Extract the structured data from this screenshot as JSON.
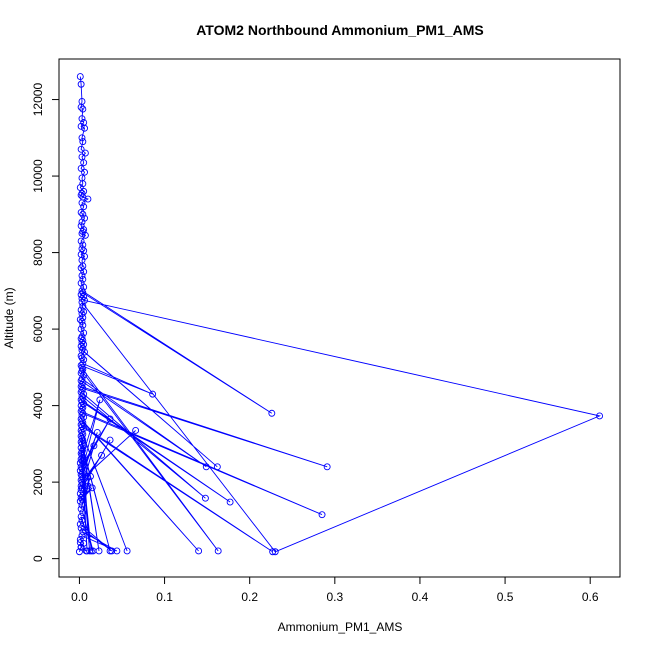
{
  "chart_data": {
    "type": "line",
    "title": "ATOM2 Northbound Ammonium_PM1_AMS",
    "xlabel": "Ammonium_PM1_AMS",
    "ylabel": "Altitude (m)",
    "xlim": [
      -0.024,
      0.635
    ],
    "ylim": [
      -480,
      13060
    ],
    "x_ticks": [
      0.0,
      0.1,
      0.2,
      0.3,
      0.4,
      0.5,
      0.6
    ],
    "x_tick_labels": [
      "0.0",
      "0.1",
      "0.2",
      "0.3",
      "0.4",
      "0.5",
      "0.6"
    ],
    "y_ticks": [
      0,
      2000,
      4000,
      6000,
      8000,
      10000,
      12000
    ],
    "y_tick_labels": [
      "0",
      "2000",
      "4000",
      "6000",
      "8000",
      "10000",
      "12000"
    ],
    "grid": false,
    "legend": "none",
    "series_color": "#0000ff",
    "marker": "open-circle",
    "series": [
      {
        "x": [
          0.001,
          0.002,
          0.003,
          0.002,
          0.004,
          0.003,
          0.005,
          0.002,
          0.006,
          0.003,
          0.004,
          0.002,
          0.007,
          0.003,
          0.005,
          0.002,
          0.006,
          0.003,
          0.004,
          0.001,
          0.005,
          0.003,
          0.002,
          0.004,
          0.01,
          0.003,
          0.005,
          0.002,
          0.004,
          0.006,
          0.003,
          0.002,
          0.005,
          0.004,
          0.003,
          0.007,
          0.002,
          0.004,
          0.003,
          0.005,
          0.002,
          0.006,
          0.003,
          0.004,
          0.002,
          0.005,
          0.003,
          0.004,
          0.002,
          0.005,
          0.003,
          0.226,
          0.004,
          0.002,
          0.005,
          0.003,
          0.006,
          0.611,
          0.23,
          0.003,
          0.004,
          0.002,
          0.005,
          0.003,
          0.004,
          0.001,
          0.003,
          0.004,
          0.002,
          0.005,
          0.003,
          0.002,
          0.004,
          0.003,
          0.005,
          0.002,
          0.004,
          0.003,
          0.162,
          0.006,
          0.002,
          0.003,
          0.005,
          0.004,
          0.086,
          0.002,
          0.003,
          0.004,
          0.163,
          0.003,
          0.002,
          0.005,
          0.003,
          0.149,
          0.002,
          0.004,
          0.003,
          0.002,
          0.291,
          0.004,
          0.003,
          0.002,
          0.005,
          0.148,
          0.003,
          0.004,
          0.002,
          0.177,
          0.003,
          0.005,
          0.002,
          0.004,
          0.003,
          0.002,
          0.285,
          0.004,
          0.003,
          0.005,
          0.002,
          0.14,
          0.003,
          0.004,
          0.002,
          0.227,
          0.003,
          0.005,
          0.002,
          0.056,
          0.003,
          0.004,
          0.002,
          0.023,
          0.003,
          0.004,
          0.002,
          0.036,
          0.003,
          0.005,
          0.002,
          0.012,
          0.004,
          0.003,
          0.002,
          0.009,
          0.003,
          0.004,
          0.002,
          0.014,
          0.003,
          0.001,
          0.024,
          0.005,
          0.002,
          0.036,
          0.003,
          0.001,
          0.004,
          0.002,
          0.021,
          0.003,
          0.004,
          0.066,
          0.002,
          0.003,
          0.026,
          0.004,
          0.002,
          0.003,
          0.036,
          0.002,
          0.017,
          0.001,
          0.004,
          0.002,
          0.015,
          0.003,
          0.001,
          0.013,
          0.003,
          0.002,
          0.01,
          0.004,
          0.016,
          0.002,
          0.003,
          0.001,
          0.038,
          0.002,
          0.004,
          0.044,
          0.003,
          0.001,
          0.005,
          0.002,
          0.008,
          0.001,
          0.002,
          0.0
        ],
        "y": [
          12600,
          12400,
          11950,
          11800,
          11750,
          11500,
          11400,
          11300,
          11250,
          11000,
          10900,
          10700,
          10600,
          10500,
          10350,
          10200,
          10100,
          9950,
          9800,
          9700,
          9600,
          9550,
          9500,
          9450,
          9400,
          9300,
          9200,
          9050,
          9000,
          8900,
          8800,
          8700,
          8600,
          8550,
          8500,
          8450,
          8300,
          8200,
          8100,
          8050,
          7950,
          7900,
          7800,
          7650,
          7600,
          7500,
          7400,
          7300,
          7200,
          7100,
          7000,
          3800,
          6950,
          6900,
          6850,
          6800,
          6750,
          3730,
          180,
          6700,
          6600,
          6500,
          6450,
          6400,
          6300,
          6250,
          6200,
          6100,
          6000,
          5900,
          5800,
          5750,
          5700,
          5650,
          5600,
          5550,
          5500,
          5450,
          2400,
          5400,
          5300,
          5250,
          5200,
          5100,
          4300,
          5050,
          5000,
          4950,
          200,
          4900,
          4850,
          4800,
          4700,
          2400,
          4650,
          4600,
          4550,
          4500,
          2400,
          4450,
          4400,
          4350,
          4300,
          1580,
          4250,
          4200,
          4150,
          1480,
          4100,
          4050,
          4000,
          3950,
          3900,
          3850,
          1150,
          3800,
          3750,
          3700,
          3650,
          200,
          3600,
          3550,
          3500,
          180,
          3450,
          3400,
          3350,
          200,
          3300,
          3250,
          3200,
          200,
          3150,
          3100,
          3050,
          200,
          3000,
          2950,
          2900,
          200,
          2850,
          2800,
          2750,
          200,
          2700,
          2650,
          2600,
          200,
          2550,
          2500,
          4150,
          2450,
          2400,
          3650,
          2350,
          2300,
          2250,
          2200,
          3300,
          2150,
          2100,
          3350,
          2050,
          2000,
          2700,
          1950,
          1900,
          1850,
          3100,
          1800,
          2950,
          1700,
          1650,
          1600,
          1850,
          1550,
          1500,
          2150,
          1400,
          1300,
          1900,
          1200,
          200,
          1100,
          1000,
          900,
          200,
          800,
          700,
          200,
          600,
          500,
          400,
          300,
          200,
          420,
          300,
          180
        ]
      }
    ]
  }
}
